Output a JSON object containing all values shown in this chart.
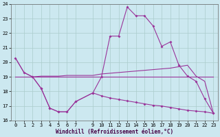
{
  "bg_color": "#cce8f0",
  "grid_color": "#aacccc",
  "line_color": "#993399",
  "ylim": [
    16,
    24
  ],
  "xlim": [
    -0.5,
    23.5
  ],
  "yticks": [
    16,
    17,
    18,
    19,
    20,
    21,
    22,
    23,
    24
  ],
  "xticks": [
    0,
    1,
    2,
    3,
    4,
    5,
    6,
    7,
    9,
    10,
    11,
    12,
    13,
    14,
    15,
    16,
    17,
    18,
    19,
    20,
    21,
    22,
    23
  ],
  "xlabel": "Windchill (Refroidissement éolien,°C)",
  "series1_x": [
    0,
    1,
    2,
    3,
    4,
    5,
    6,
    7,
    9,
    10,
    11,
    12,
    13,
    14,
    15,
    16,
    17,
    18,
    19,
    20,
    21,
    22,
    23
  ],
  "series1_y": [
    20.3,
    19.3,
    19.0,
    19.05,
    19.05,
    19.05,
    19.1,
    19.1,
    19.1,
    19.2,
    19.25,
    19.3,
    19.35,
    19.4,
    19.45,
    19.5,
    19.55,
    19.6,
    19.7,
    19.8,
    19.05,
    18.7,
    16.5
  ],
  "series2_x": [
    0,
    1,
    2,
    3,
    4,
    5,
    6,
    7,
    9,
    10,
    11,
    12,
    13,
    14,
    15,
    16,
    17,
    18,
    19,
    20,
    21,
    22,
    23
  ],
  "series2_y": [
    20.3,
    19.3,
    19.0,
    18.2,
    16.85,
    16.6,
    16.6,
    17.3,
    17.9,
    19.0,
    21.8,
    21.8,
    23.8,
    23.2,
    23.2,
    22.5,
    21.1,
    21.4,
    19.8,
    19.05,
    18.7,
    17.5,
    16.5
  ],
  "series3_x": [
    0,
    1,
    2,
    3,
    4,
    5,
    6,
    7,
    9,
    10,
    11,
    12,
    13,
    14,
    15,
    16,
    17,
    18,
    19,
    20,
    21,
    22,
    23
  ],
  "series3_y": [
    19.0,
    19.0,
    19.0,
    19.0,
    19.0,
    19.0,
    19.0,
    19.0,
    19.0,
    19.0,
    19.0,
    19.0,
    19.0,
    19.0,
    19.0,
    19.0,
    19.0,
    19.0,
    19.0,
    19.0,
    19.0,
    19.0,
    19.0
  ],
  "series4_x": [
    2,
    3,
    4,
    5,
    6,
    7,
    9,
    10,
    11,
    12,
    13,
    14,
    15,
    16,
    17,
    18,
    19,
    20,
    21,
    22,
    23
  ],
  "series4_y": [
    19.0,
    18.2,
    16.85,
    16.6,
    16.6,
    17.3,
    17.9,
    17.7,
    17.55,
    17.45,
    17.35,
    17.25,
    17.15,
    17.05,
    17.0,
    16.9,
    16.8,
    16.7,
    16.65,
    16.6,
    16.5
  ]
}
